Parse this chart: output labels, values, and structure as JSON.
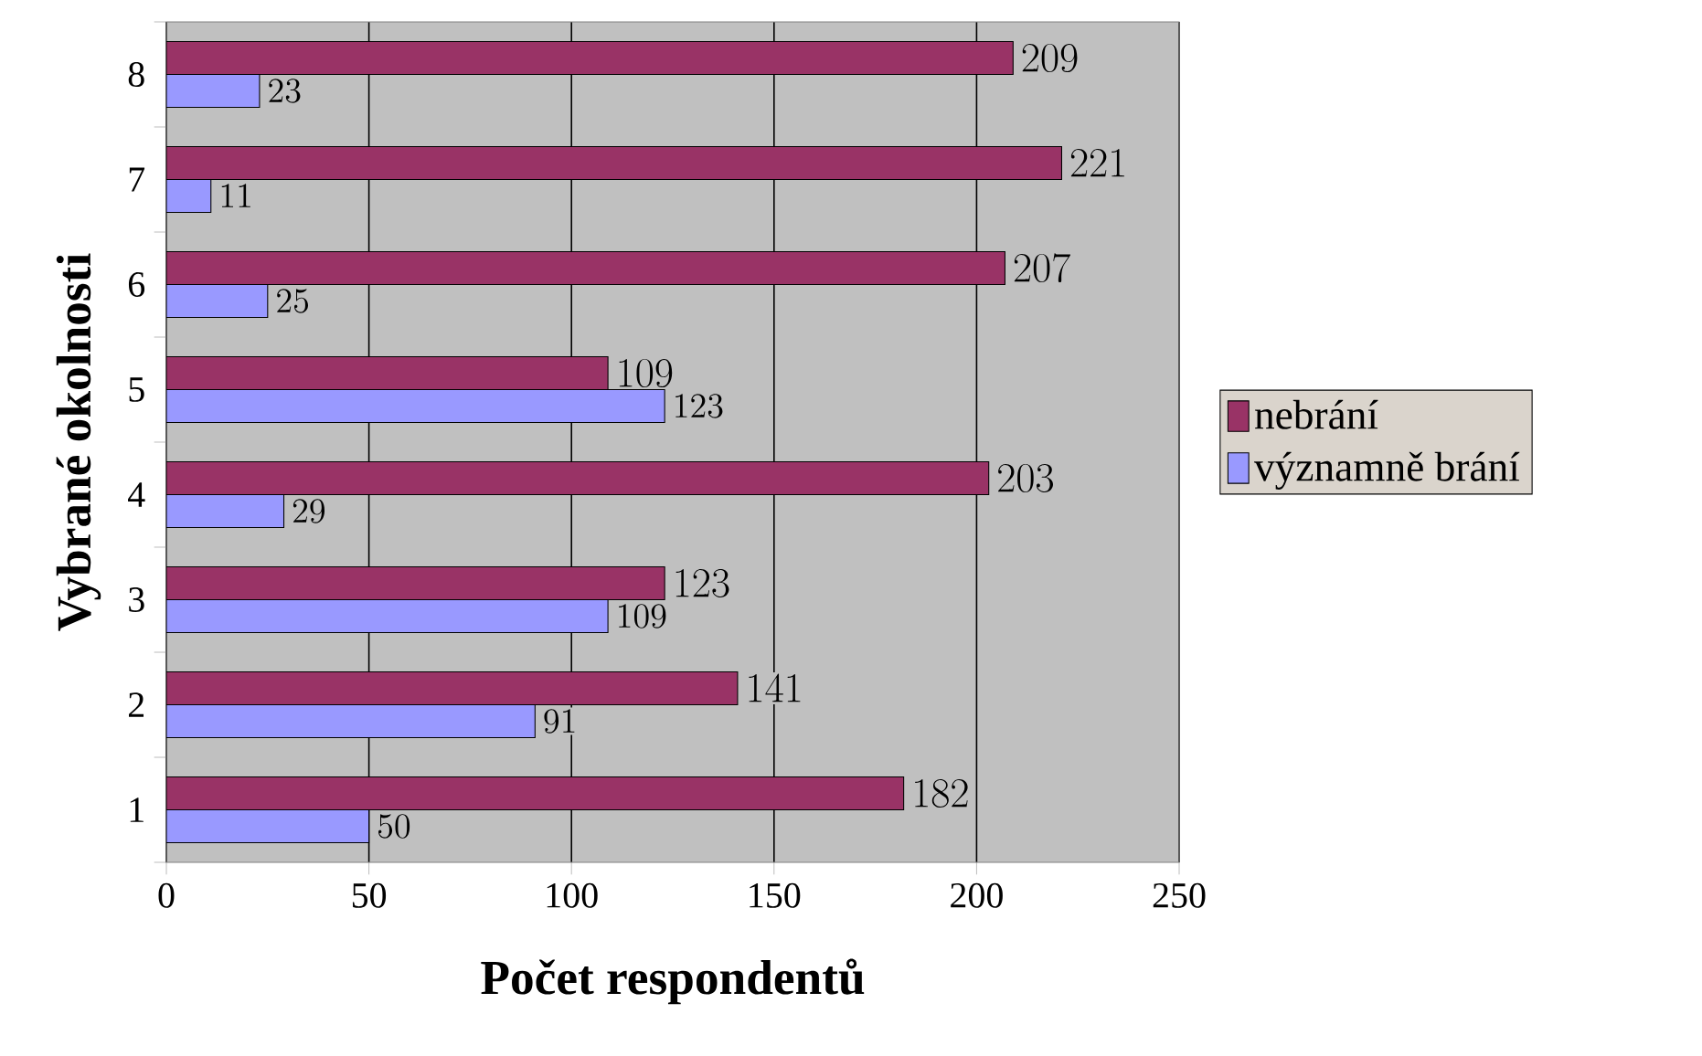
{
  "chart_data": {
    "type": "bar",
    "orientation": "horizontal",
    "xlabel": "Počet respondentů",
    "ylabel": "Vybrané okolnosti",
    "categories": [
      "8",
      "7",
      "6",
      "5",
      "4",
      "3",
      "2",
      "1"
    ],
    "series": [
      {
        "name": "nebrání",
        "color": "#993366",
        "values": [
          209,
          221,
          207,
          109,
          203,
          123,
          141,
          182
        ]
      },
      {
        "name": "významně brání",
        "color": "#9999ff",
        "values": [
          23,
          11,
          25,
          123,
          29,
          109,
          91,
          50
        ]
      }
    ],
    "xlim": [
      0,
      250
    ],
    "xticks": [
      0,
      50,
      100,
      150,
      200,
      250
    ],
    "grid": "x",
    "legend": "right",
    "data_labels": true
  }
}
